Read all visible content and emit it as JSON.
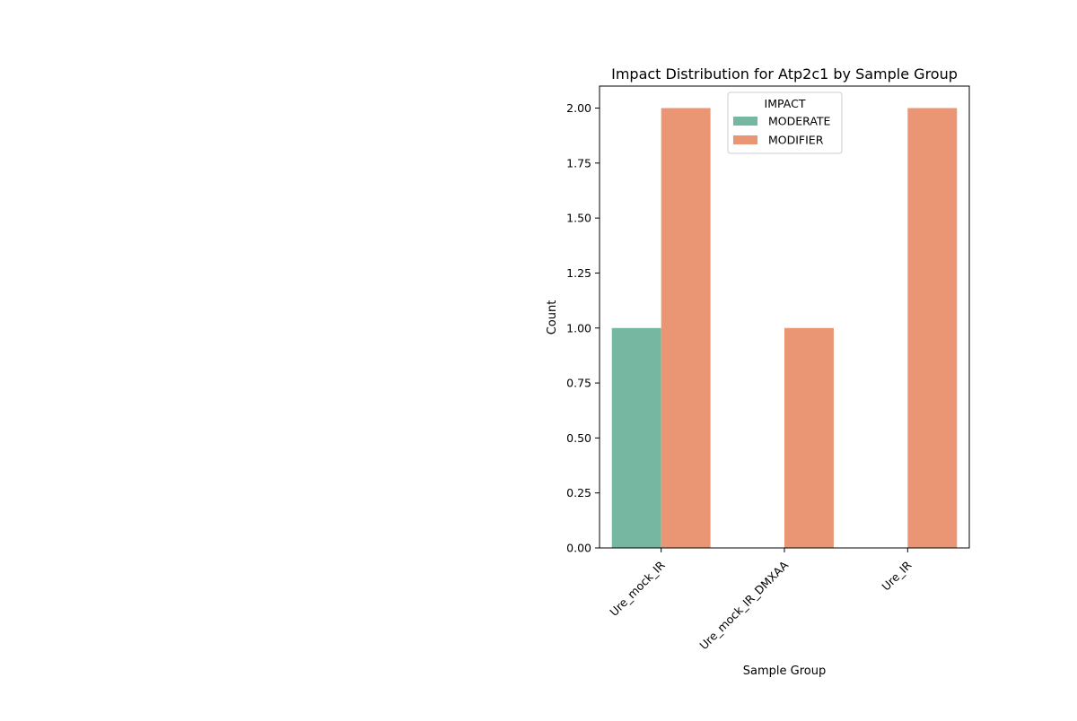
{
  "chart_data": {
    "type": "bar",
    "title": "Impact Distribution for Atp2c1 by Sample Group",
    "xlabel": "Sample Group",
    "ylabel": "Count",
    "categories": [
      "Ure_mock_IR",
      "Ure_mock_IR_DMXAA",
      "Ure_IR"
    ],
    "series": [
      {
        "name": "MODERATE",
        "values": [
          1,
          0,
          0
        ],
        "color": "#76b7a2"
      },
      {
        "name": "MODIFIER",
        "values": [
          2,
          1,
          2
        ],
        "color": "#ea9674"
      }
    ],
    "ylim": [
      0,
      2.1
    ],
    "yticks": [
      "0.00",
      "0.25",
      "0.50",
      "0.75",
      "1.00",
      "1.25",
      "1.50",
      "1.75",
      "2.00"
    ],
    "grid": false,
    "legend": {
      "title": "IMPACT",
      "position": "upper-center"
    }
  }
}
